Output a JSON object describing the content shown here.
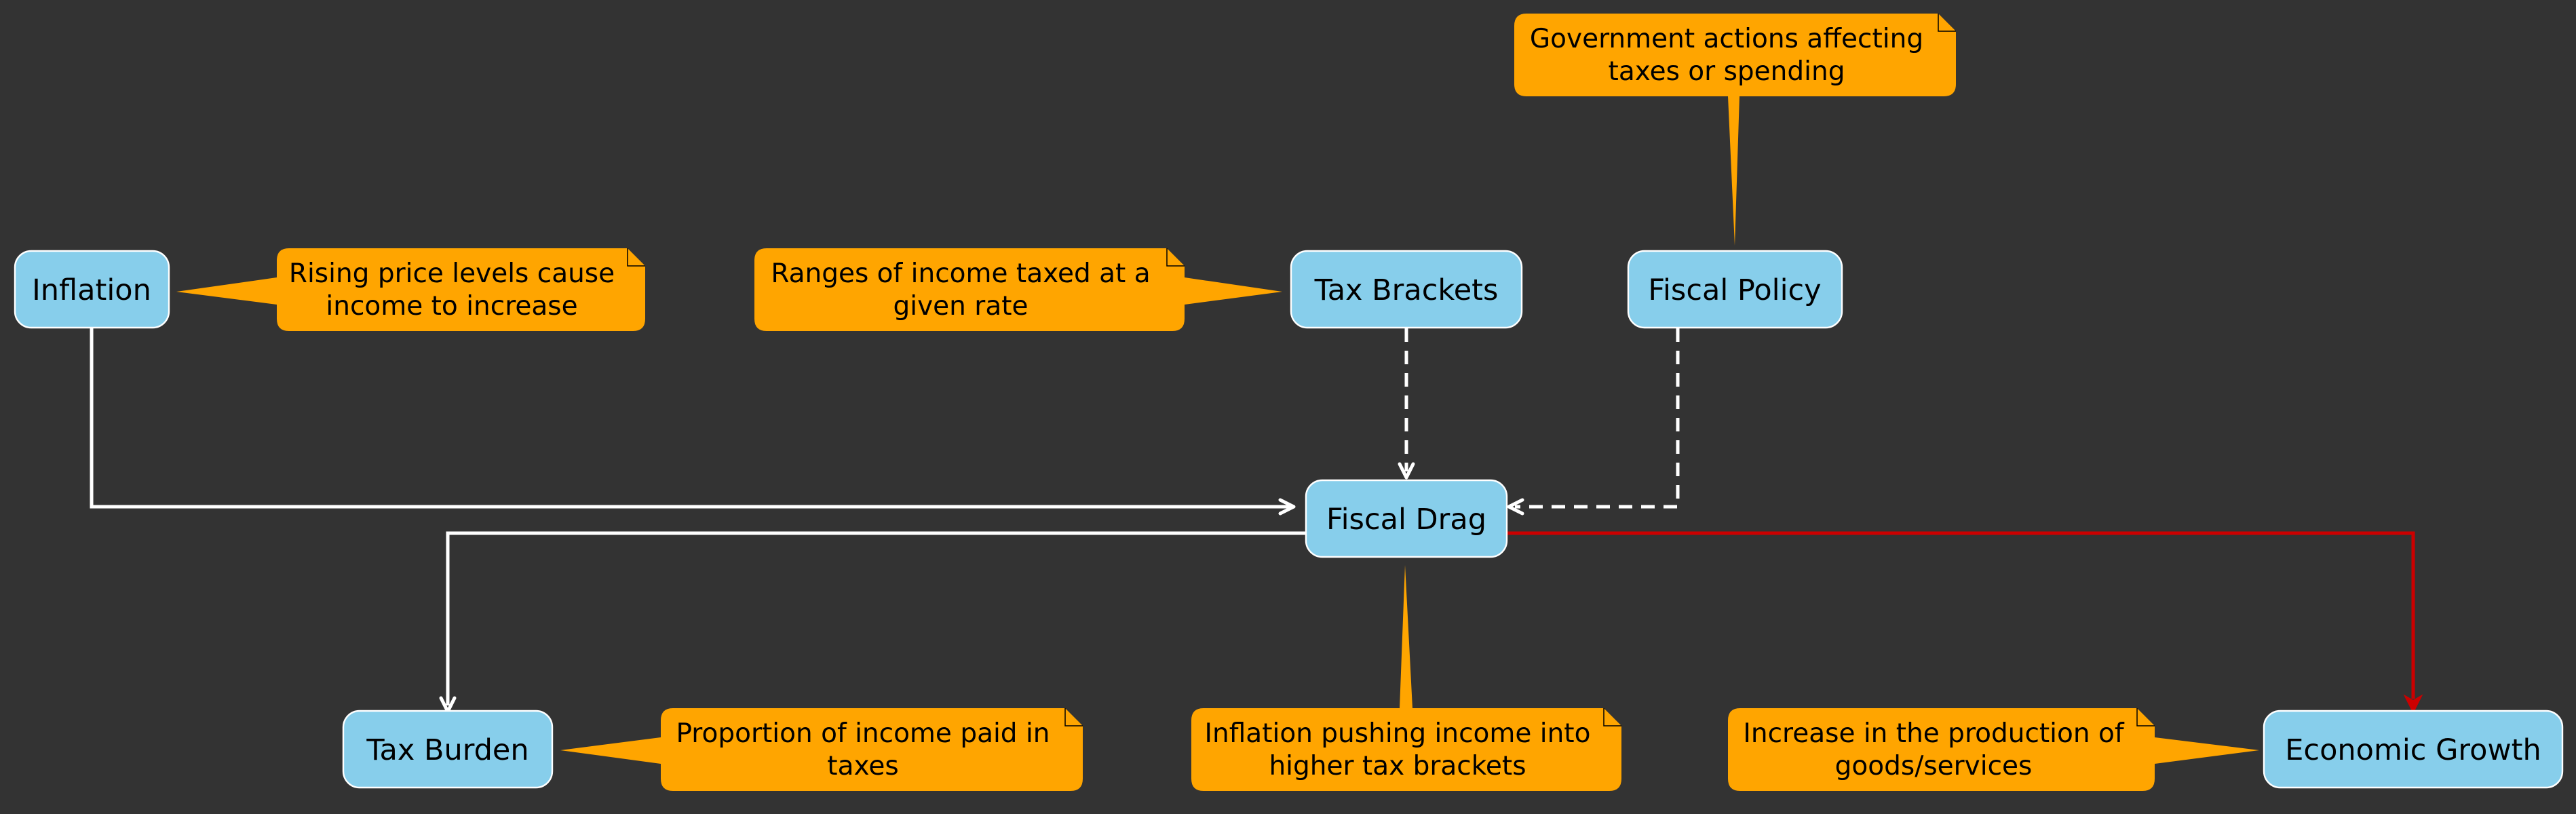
{
  "nodes": {
    "inflation": "Inflation",
    "tax_brackets": "Tax Brackets",
    "fiscal_policy": "Fiscal Policy",
    "fiscal_drag": "Fiscal Drag",
    "tax_burden": "Tax Burden",
    "economic_growth": "Economic Growth"
  },
  "notes": {
    "inflation": [
      "Rising price levels cause",
      "income to increase"
    ],
    "tax_brackets": [
      "Ranges of income taxed at a",
      "given rate"
    ],
    "fiscal_policy": [
      "Government actions affecting",
      "taxes or spending"
    ],
    "fiscal_drag": [
      "Inflation pushing income into",
      "higher tax brackets"
    ],
    "tax_burden": [
      "Proportion of income paid in",
      "taxes"
    ],
    "economic_growth": [
      "Increase in the production of",
      "goods/services"
    ]
  },
  "edges": [
    {
      "from": "Inflation",
      "to": "Fiscal Drag",
      "style": "solid",
      "color": "#ffffff"
    },
    {
      "from": "Tax Brackets",
      "to": "Fiscal Drag",
      "style": "dashed",
      "color": "#ffffff"
    },
    {
      "from": "Fiscal Policy",
      "to": "Fiscal Drag",
      "style": "dashed",
      "color": "#ffffff"
    },
    {
      "from": "Fiscal Drag",
      "to": "Tax Burden",
      "style": "solid",
      "color": "#ffffff"
    },
    {
      "from": "Fiscal Drag",
      "to": "Economic Growth",
      "style": "solid",
      "color": "#CC0000"
    }
  ],
  "colors": {
    "background": "#333333",
    "node_fill": "#87CEEB",
    "note_fill": "#FFA500",
    "edge_default": "#ffffff",
    "edge_highlight": "#CC0000"
  }
}
